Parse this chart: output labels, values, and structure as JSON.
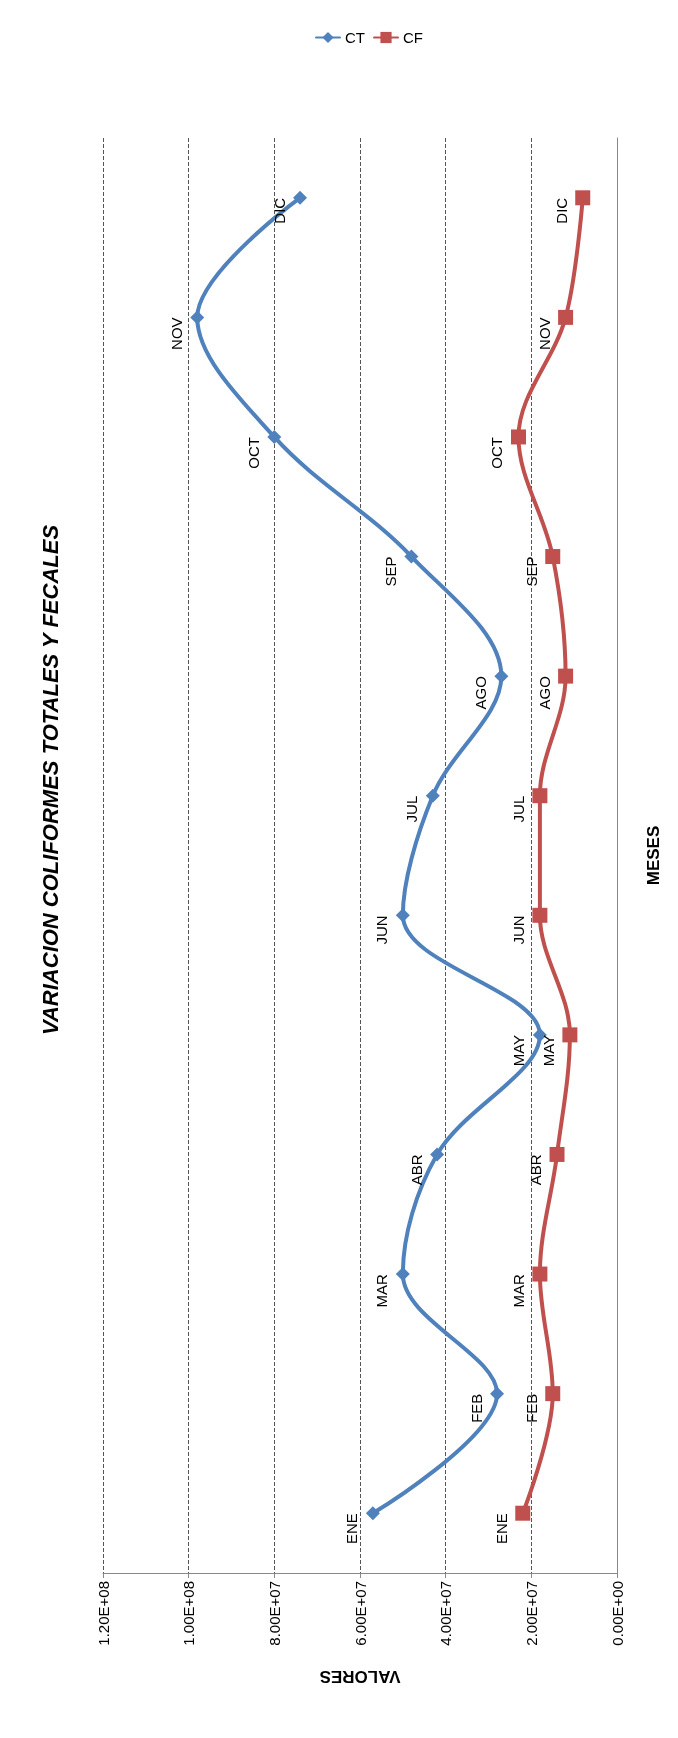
{
  "chart_data": {
    "type": "line",
    "orientation": "horizontal",
    "title": "VARIACION COLIFORMES TOTALES Y FECALES",
    "xlabel": "VALORES",
    "ylabel": "MESES",
    "categories": [
      "DIC",
      "NOV",
      "OCT",
      "SEP",
      "AGO",
      "JUL",
      "JUN",
      "MAY",
      "ABR",
      "MAR",
      "FEB",
      "ENE"
    ],
    "series": [
      {
        "name": "CT",
        "color": "#4f81bd",
        "marker": "diamond",
        "values": [
          74000000,
          98000000,
          80000000,
          48000000,
          27000000,
          43000000,
          50000000,
          18000000,
          42000000,
          50000000,
          28000000,
          57000000
        ]
      },
      {
        "name": "CF",
        "color": "#c0504d",
        "marker": "square",
        "values": [
          8000000,
          12000000,
          23000000,
          15000000,
          12000000,
          18000000,
          18000000,
          11000000,
          14000000,
          18000000,
          15000000,
          22000000
        ]
      }
    ],
    "xlim": [
      120000000,
      0
    ],
    "xticks": [
      {
        "value": 0,
        "label": "0.00E+00"
      },
      {
        "value": 20000000,
        "label": "2.00E+07"
      },
      {
        "value": 40000000,
        "label": "4.00E+07"
      },
      {
        "value": 60000000,
        "label": "6.00E+07"
      },
      {
        "value": 80000000,
        "label": "8.00E+07"
      },
      {
        "value": 100000000,
        "label": "1.00E+08"
      },
      {
        "value": 120000000,
        "label": "1.20E+08"
      }
    ],
    "grid": "x",
    "legend": "top right",
    "tick_labels": "x"
  }
}
